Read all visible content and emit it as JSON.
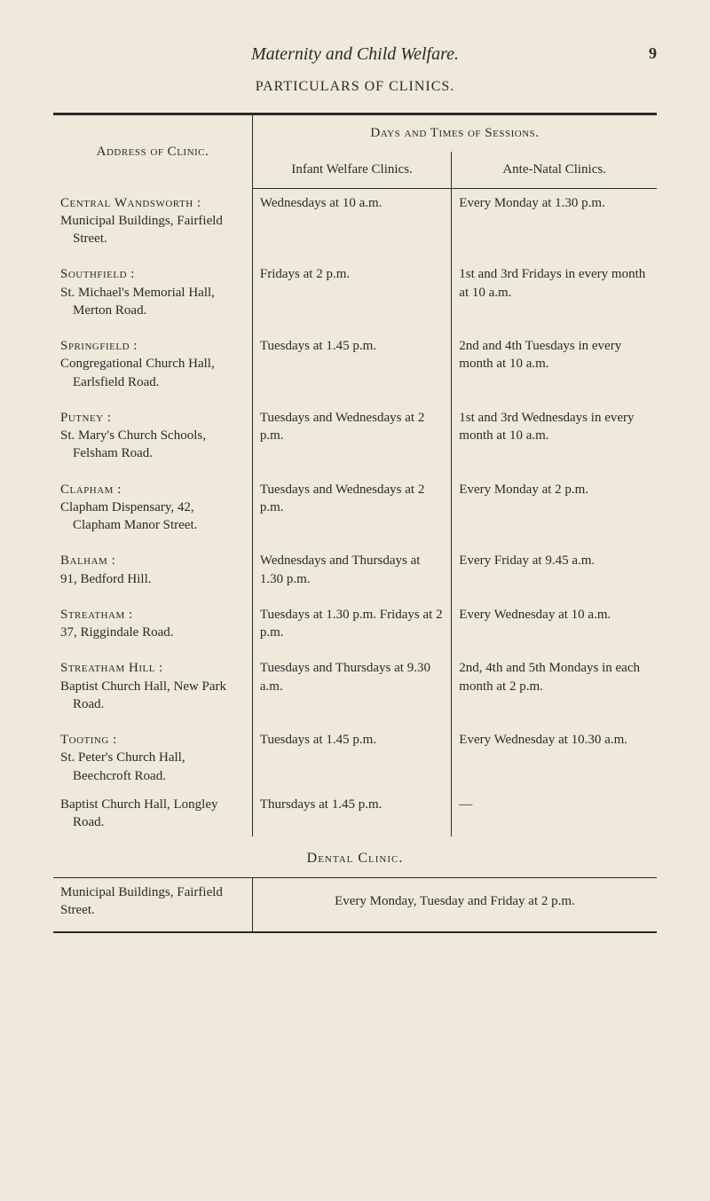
{
  "header": {
    "title": "Maternity and Child Welfare.",
    "page_number": "9",
    "subtitle": "PARTICULARS OF CLINICS."
  },
  "table": {
    "header": {
      "address_label": "Address of Clinic.",
      "days_label": "Days and Times of Sessions.",
      "infant_label": "Infant Welfare Clinics.",
      "ante_label": "Ante-Natal Clinics."
    },
    "groups": [
      {
        "label": "Central Wandsworth :",
        "rows": [
          {
            "name": "Municipal Buildings, Fairfield Street.",
            "infant": "Wednesdays at 10 a.m.",
            "ante": "Every Monday at 1.30 p.m."
          }
        ]
      },
      {
        "label": "Southfield :",
        "rows": [
          {
            "name": "St. Michael's Memorial Hall, Merton Road.",
            "infant": "Fridays at 2 p.m.",
            "ante": "1st and 3rd Fridays in every month at 10 a.m."
          }
        ]
      },
      {
        "label": "Springfield :",
        "rows": [
          {
            "name": "Congregational Church Hall, Earlsfield Road.",
            "infant": "Tuesdays at 1.45 p.m.",
            "ante": "2nd and 4th Tuesdays in every month at 10 a.m."
          }
        ]
      },
      {
        "label": "Putney :",
        "rows": [
          {
            "name": "St. Mary's Church Schools, Felsham Road.",
            "infant": "Tuesdays and Wednesdays at 2 p.m.",
            "ante": "1st and 3rd Wednesdays in every month at 10 a.m."
          }
        ]
      },
      {
        "label": "Clapham :",
        "rows": [
          {
            "name": "Clapham Dispensary, 42, Clapham Manor Street.",
            "infant": "Tuesdays and Wednesdays at 2 p.m.",
            "ante": "Every Monday at 2 p.m."
          }
        ]
      },
      {
        "label": "Balham :",
        "rows": [
          {
            "name": "91, Bedford Hill.",
            "infant": "Wednesdays and Thursdays at 1.30 p.m.",
            "ante": "Every Friday at 9.45 a.m."
          }
        ]
      },
      {
        "label": "Streatham :",
        "rows": [
          {
            "name": "37, Riggindale Road.",
            "infant": "Tuesdays at 1.30 p.m. Fridays at 2 p.m.",
            "ante": "Every Wednesday at 10 a.m."
          }
        ]
      },
      {
        "label": "Streatham Hill :",
        "rows": [
          {
            "name": "Baptist Church Hall, New Park Road.",
            "infant": "Tuesdays and Thurs­days at 9.30 a.m.",
            "ante": "2nd, 4th and 5th Mon­days in each month at 2 p.m."
          }
        ]
      },
      {
        "label": "Tooting :",
        "rows": [
          {
            "name": "St. Peter's Church Hall, Beechcroft Road.",
            "infant": "Tuesdays at 1.45 p.m.",
            "ante": "Every Wednesday at 10.30 a.m."
          },
          {
            "name": "Baptist Church Hall, Longley Road.",
            "infant": "Thursdays at 1.45 p.m.",
            "ante": "—"
          }
        ]
      }
    ]
  },
  "dental": {
    "heading": "Dental Clinic.",
    "address": "Municipal Buildings, Fairfield Street.",
    "schedule": "Every Monday, Tuesday and Friday at 2 p.m."
  }
}
